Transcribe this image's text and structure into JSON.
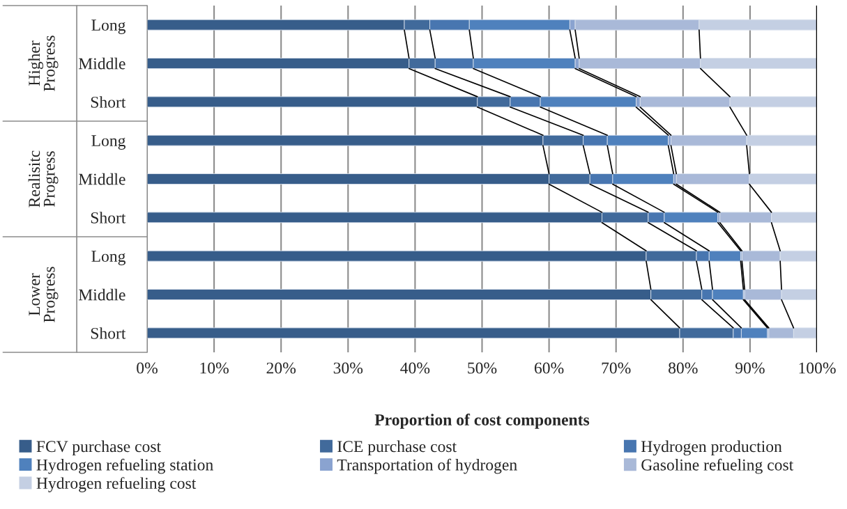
{
  "chart_data": {
    "type": "bar",
    "orientation": "horizontal",
    "stacked": true,
    "xlabel": "Proportion of cost components",
    "categories": [
      "Long",
      "Middle",
      "Short",
      "Long",
      "Middle",
      "Short",
      "Long",
      "Middle",
      "Short"
    ],
    "annotations": [
      "Higher Progress",
      "Realisitc Progress",
      "Lower Progress"
    ],
    "series": [
      {
        "name": "FCV purchase cost",
        "color": "#375d8a",
        "values": [
          38.4,
          39.1,
          49.3,
          59.1,
          60.0,
          67.9,
          74.5,
          75.2,
          79.5
        ]
      },
      {
        "name": "ICE purchase cost",
        "color": "#416a9b",
        "values": [
          3.8,
          3.9,
          4.9,
          6.0,
          6.1,
          6.9,
          7.5,
          7.6,
          8.0
        ]
      },
      {
        "name": "Hydrogen production",
        "color": "#4876b0",
        "values": [
          5.9,
          5.7,
          4.5,
          3.6,
          3.4,
          2.4,
          1.9,
          1.6,
          1.2
        ]
      },
      {
        "name": "Hydrogen refueling station",
        "color": "#4f81bd",
        "values": [
          15.0,
          15.2,
          14.3,
          9.1,
          9.1,
          8.0,
          4.7,
          4.6,
          3.9
        ]
      },
      {
        "name": "Transportation of hydrogen",
        "color": "#8aa3d0",
        "values": [
          0.8,
          0.6,
          0.6,
          0.4,
          0.4,
          0.3,
          0.2,
          0.2,
          0.2
        ]
      },
      {
        "name": "Gasoline refueling cost",
        "color": "#a9b9d8",
        "values": [
          18.5,
          18.1,
          13.4,
          11.3,
          10.9,
          7.7,
          5.7,
          5.5,
          3.7
        ]
      },
      {
        "name": "Hydrogen refueling cost",
        "color": "#c4cfe3",
        "values": [
          17.6,
          17.4,
          13.0,
          10.5,
          10.1,
          6.8,
          5.5,
          5.3,
          3.5
        ]
      }
    ],
    "xlim": [
      0,
      100
    ],
    "xticks": [
      {
        "value": 0,
        "label": "0%"
      },
      {
        "value": 10,
        "label": "10%"
      },
      {
        "value": 20,
        "label": "20%"
      },
      {
        "value": 30,
        "label": "30%"
      },
      {
        "value": 40,
        "label": "40%"
      },
      {
        "value": 50,
        "label": "50%"
      },
      {
        "value": 60,
        "label": "60%"
      },
      {
        "value": 70,
        "label": "70%"
      },
      {
        "value": 80,
        "label": "80%"
      },
      {
        "value": 90,
        "label": "90%"
      },
      {
        "value": 100,
        "label": "100%"
      }
    ],
    "grid": "x",
    "legend": "bottom"
  }
}
